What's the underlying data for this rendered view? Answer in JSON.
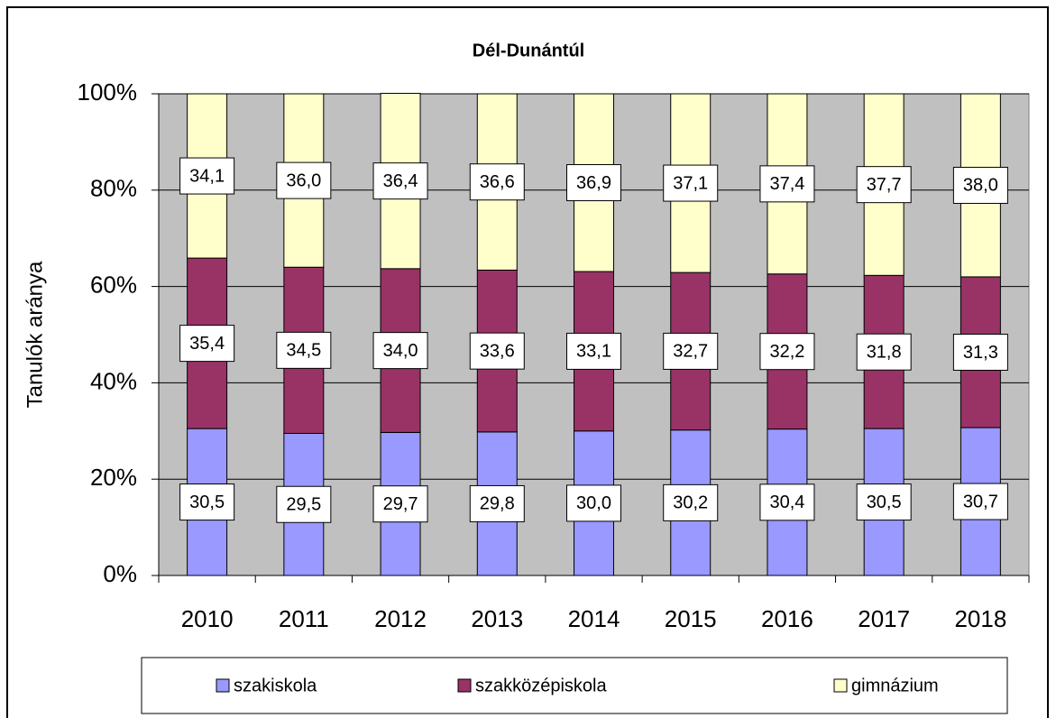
{
  "chart_data": {
    "type": "stacked_bar",
    "title": "Dél-Dunántúl",
    "y_label": "Tanulók aránya",
    "categories": [
      "2010",
      "2011",
      "2012",
      "2013",
      "2014",
      "2015",
      "2016",
      "2017",
      "2018"
    ],
    "series": [
      {
        "name": "szakiskola",
        "color": "#9999ff",
        "values": [
          30.5,
          29.5,
          29.7,
          29.8,
          30.0,
          30.2,
          30.4,
          30.5,
          30.7
        ],
        "value_labels": [
          "30,5",
          "29,5",
          "29,7",
          "29,8",
          "30,0",
          "30,2",
          "30,4",
          "30,5",
          "30,7"
        ]
      },
      {
        "name": "szakközépiskola",
        "color": "#993366",
        "values": [
          35.4,
          34.5,
          34.0,
          33.6,
          33.1,
          32.7,
          32.2,
          31.8,
          31.3
        ],
        "value_labels": [
          "35,4",
          "34,5",
          "34,0",
          "33,6",
          "33,1",
          "32,7",
          "32,2",
          "31,8",
          "31,3"
        ]
      },
      {
        "name": "gimnázium",
        "color": "#ffffcc",
        "values": [
          34.1,
          36.0,
          36.4,
          36.6,
          36.9,
          37.1,
          37.4,
          37.7,
          38.0
        ],
        "value_labels": [
          "34,1",
          "36,0",
          "36,4",
          "36,6",
          "36,9",
          "37,1",
          "37,4",
          "37,7",
          "38,0"
        ]
      }
    ],
    "ylim": [
      0,
      100
    ],
    "yticks": [
      {
        "value": 0,
        "label": "0%"
      },
      {
        "value": 20,
        "label": "20%"
      },
      {
        "value": 40,
        "label": "40%"
      },
      {
        "value": 60,
        "label": "60%"
      },
      {
        "value": 80,
        "label": "80%"
      },
      {
        "value": 100,
        "label": "100%"
      }
    ],
    "grid": true,
    "plot_background": "#c0c0c0",
    "legend": "bottom"
  }
}
